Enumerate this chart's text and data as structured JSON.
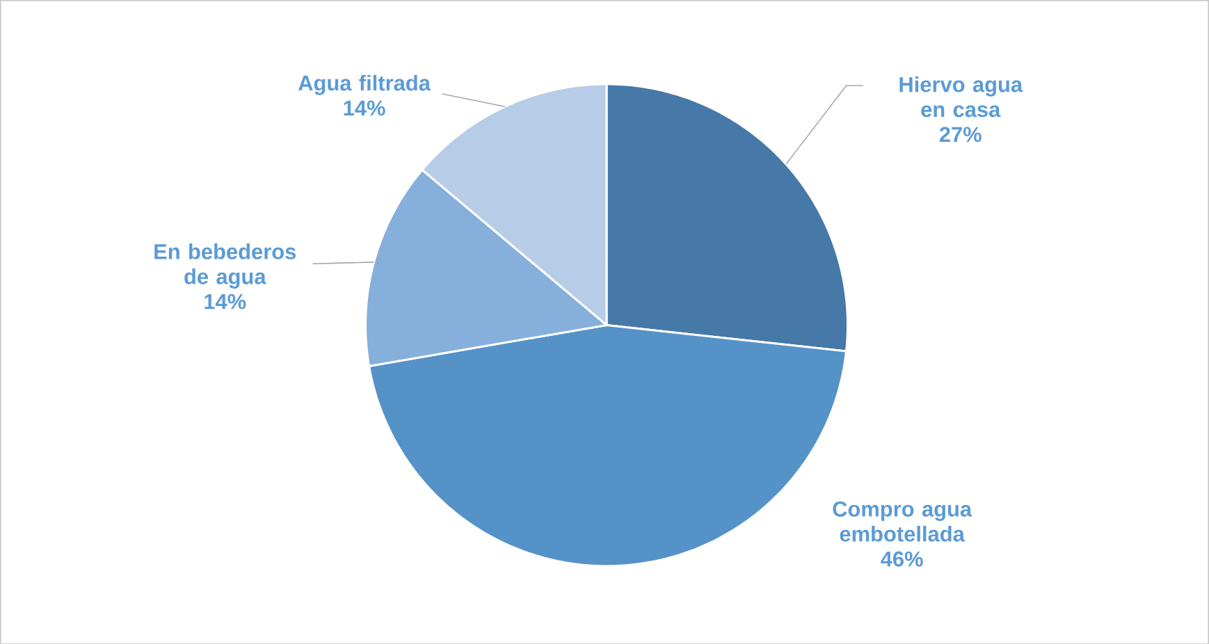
{
  "chart_data": {
    "type": "pie",
    "categories": [
      "Hiervo agua en casa",
      "Compro agua embotellada",
      "En bebederos de agua",
      "Agua filtrada"
    ],
    "values": [
      27,
      46,
      14,
      14
    ],
    "value_labels": [
      "27%",
      "46%",
      "14%",
      "14%"
    ],
    "colors": [
      "#4678a8",
      "#5592c8",
      "#86afdc",
      "#b7cce7"
    ]
  }
}
